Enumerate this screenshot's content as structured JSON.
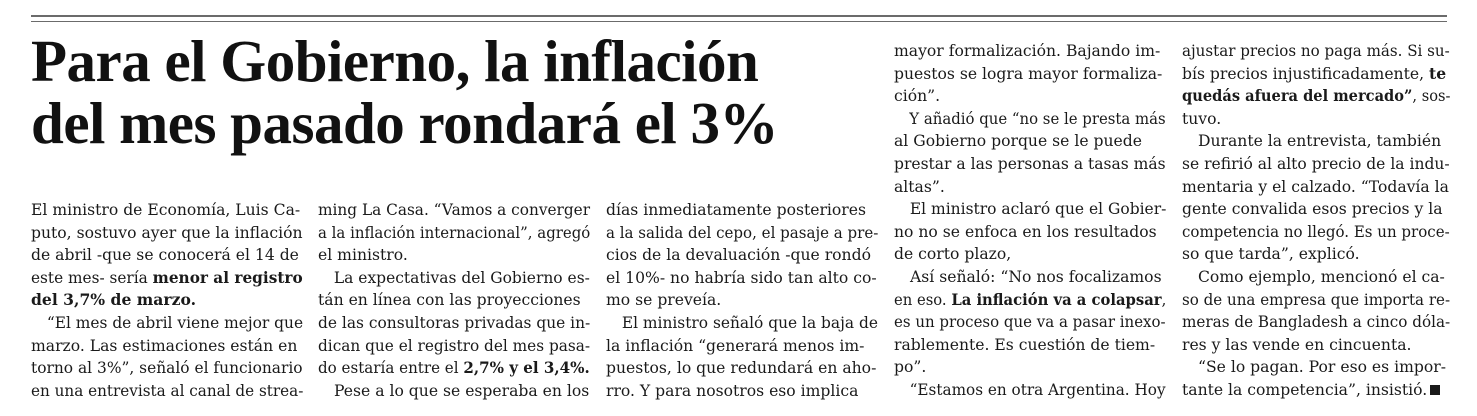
{
  "headline": {
    "line1": "Para el Gobierno, la inflación",
    "line2": "del mes pasado rondará el 3%"
  },
  "col1": {
    "l1": "El ministro de Economía, Luis Ca-",
    "l2": "puto, sostuvo ayer que la inflación",
    "l3": "de abril -que se conocerá el 14 de",
    "l4a": "este mes- sería ",
    "l4b": "menor al registro",
    "l5": "del 3,7% de marzo.",
    "l6": "“El mes de abril viene mejor que",
    "l7": "marzo. Las estimaciones están en",
    "l8": "torno al 3%”, señaló el funcionario",
    "l9": "en una entrevista al canal de strea-"
  },
  "col2": {
    "l1": "ming La Casa. “Vamos a converger",
    "l2": "a la inflación internacional”, agregó",
    "l3": "el ministro.",
    "l4": "La expectativas del Gobierno es-",
    "l5": "tán en línea con las proyecciones",
    "l6": "de las consultoras privadas que in-",
    "l7": "dican que el registro del mes pasa-",
    "l8a": "do estaría entre el ",
    "l8b": "2,7% y el 3,4%.",
    "l9": "Pese a lo que se esperaba en los"
  },
  "col3": {
    "l1": "días inmediatamente posteriores",
    "l2": "a la salida del cepo, el pasaje a pre-",
    "l3": "cios de la devaluación -que rondó",
    "l4": "el 10%- no habría sido tan alto co-",
    "l5": "mo se preveía.",
    "l6": "El ministro señaló que la baja de",
    "l7": "la inflación “generará menos im-",
    "l8": "puestos, lo que redundará en aho-",
    "l9": "rro. Y para nosotros eso implica"
  },
  "col4": {
    "l1": "mayor formalización. Bajando im-",
    "l2": "puestos se logra mayor formaliza-",
    "l3": "ción”.",
    "l4": "Y añadió que “no se le presta más",
    "l5": "al Gobierno porque se le puede",
    "l6": "prestar a las personas a tasas más",
    "l7": "altas”.",
    "l8": "El ministro aclaró que el Gobier-",
    "l9": "no no se enfoca en los resultados",
    "l10": "de corto plazo,",
    "l11": "Así señaló: “No nos focalizamos",
    "l12a": "en eso. ",
    "l12b": "La inflación va a colapsar",
    "l12c": ",",
    "l13": "es un proceso que va a pasar inexo-",
    "l14": "rablemente. Es cuestión de tiem-",
    "l15": "po”.",
    "l16": "“Estamos en otra Argentina. Hoy"
  },
  "col5": {
    "l1": "ajustar precios no paga más. Si su-",
    "l2a": "bís precios injustificadamente, ",
    "l2b": "te",
    "l3a": "quedás afuera del mercado”",
    "l3b": ", sos-",
    "l4": "tuvo.",
    "l5": "Durante la entrevista, también",
    "l6": "se refirió al alto precio de la indu-",
    "l7": "mentaria y el calzado. “Todavía la",
    "l8": "gente convalida esos precios y la",
    "l9": "competencia no llegó. Es un proce-",
    "l10": "so que tarda”, explicó.",
    "l11": "Como ejemplo, mencionó el ca-",
    "l12": "so de una empresa que importa re-",
    "l13": "meras de Bangladesh a cinco dóla-",
    "l14": "res y las vende en cincuenta.",
    "l15": "“Se lo pagan. Por eso es impor-",
    "l16": "tante la competencia”, insistió."
  }
}
